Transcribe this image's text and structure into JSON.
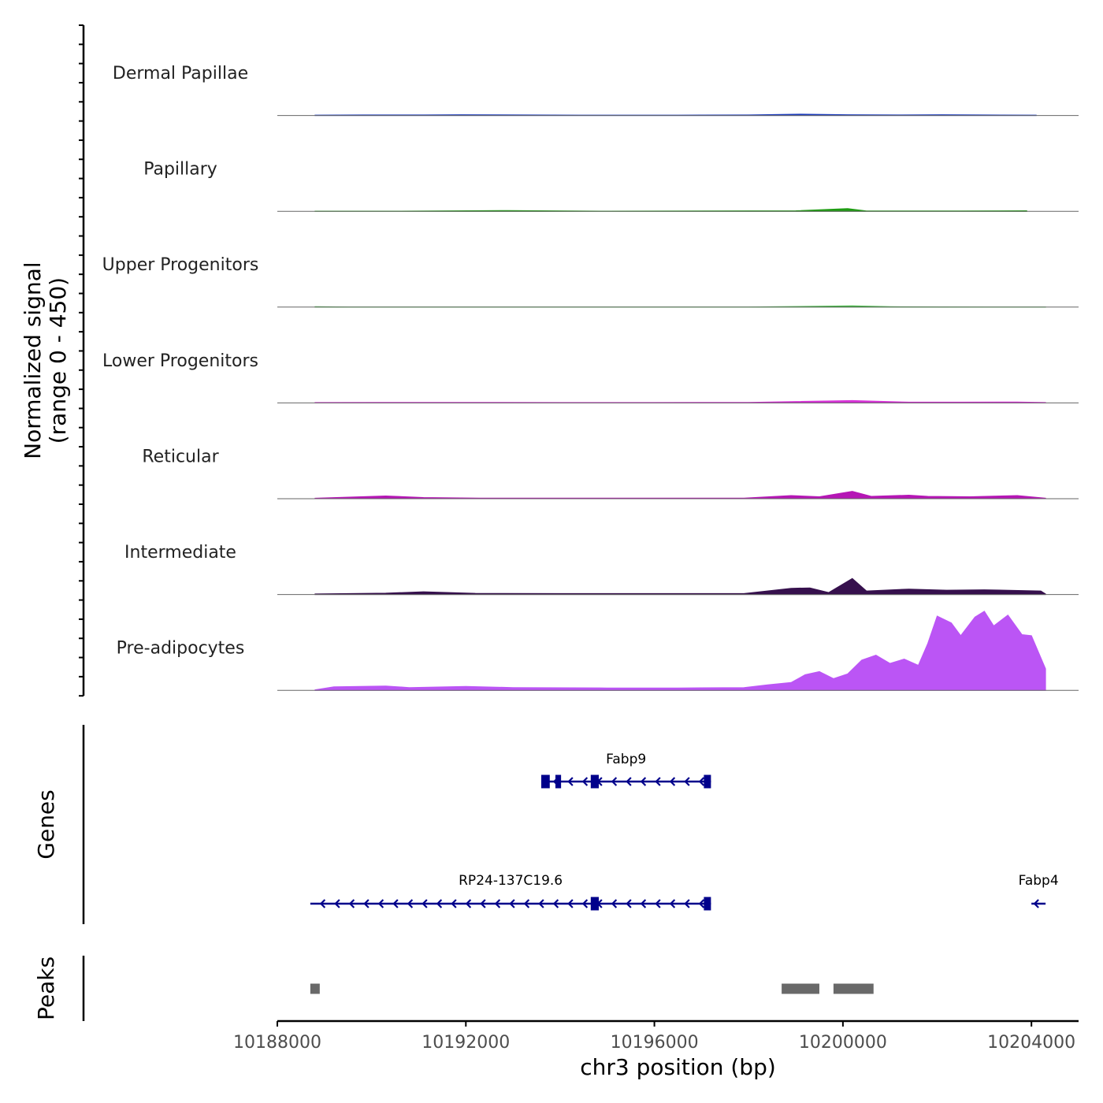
{
  "chart_data": {
    "type": "area",
    "title": "",
    "region": {
      "chromosome": "chr3",
      "start": 10188000,
      "end": 10205000
    },
    "xlabel": "chr3 position (bp)",
    "x_ticks": [
      10188000,
      10192000,
      10196000,
      10200000,
      10204000
    ],
    "coverage_ylabel": "Normalized signal\n(range 0 - 450)",
    "ylim": [
      0,
      450
    ],
    "series": [
      {
        "name": "Dermal Papillae",
        "color": "#1f3fbf",
        "x": [
          10188800,
          10189800,
          10191100,
          10191900,
          10194400,
          10196500,
          10198000,
          10199100,
          10200100,
          10201200,
          10202100,
          10203000,
          10204100
        ],
        "values": [
          2,
          3,
          3,
          4,
          2,
          2,
          3,
          7,
          4,
          3,
          4,
          3,
          2
        ]
      },
      {
        "name": "Papillary",
        "color": "#1e9c12",
        "x": [
          10188800,
          10190500,
          10192900,
          10195000,
          10197000,
          10199000,
          10200100,
          10200500,
          10201600,
          10202500,
          10203900
        ],
        "values": [
          1,
          1,
          4,
          1,
          2,
          3,
          14,
          2,
          2,
          2,
          3
        ]
      },
      {
        "name": "Upper Progenitors",
        "color": "#3cb83c",
        "x": [
          10188800,
          10189500,
          10192000,
          10195000,
          10198000,
          10200200,
          10201000,
          10203000,
          10204300
        ],
        "values": [
          2,
          1,
          1,
          1,
          1,
          6,
          2,
          1,
          1
        ]
      },
      {
        "name": "Lower Progenitors",
        "color": "#d633d6",
        "x": [
          10188800,
          10190200,
          10192000,
          10194000,
          10196000,
          10198000,
          10200200,
          10201400,
          10202500,
          10203700,
          10204300
        ],
        "values": [
          2,
          3,
          3,
          2,
          2,
          3,
          12,
          4,
          4,
          5,
          2
        ]
      },
      {
        "name": "Reticular",
        "color": "#b516b5",
        "x": [
          10188800,
          10190300,
          10191100,
          10192300,
          10194000,
          10196000,
          10197900,
          10198900,
          10199500,
          10200200,
          10200600,
          10201400,
          10201800,
          10202700,
          10203700,
          10204300
        ],
        "values": [
          3,
          14,
          6,
          3,
          3,
          3,
          3,
          16,
          10,
          38,
          12,
          18,
          12,
          10,
          16,
          3
        ]
      },
      {
        "name": "Intermediate",
        "color": "#36104d",
        "x": [
          10188800,
          10190300,
          10191100,
          10192200,
          10194000,
          10196000,
          10197900,
          10198900,
          10199300,
          10199700,
          10200200,
          10200500,
          10201400,
          10202200,
          10203000,
          10204200,
          10204300
        ],
        "values": [
          3,
          7,
          14,
          6,
          5,
          5,
          5,
          32,
          34,
          10,
          82,
          18,
          28,
          22,
          24,
          18,
          3
        ]
      },
      {
        "name": "Pre-adipocytes",
        "color": "#bb55f5",
        "x": [
          10188800,
          10189200,
          10190300,
          10190800,
          10192000,
          10193000,
          10195000,
          10196500,
          10197900,
          10198400,
          10198900,
          10199200,
          10199500,
          10199800,
          10200100,
          10200400,
          10200700,
          10201000,
          10201300,
          10201600,
          10201800,
          10202000,
          10202300,
          10202500,
          10202800,
          10203000,
          10203200,
          10203500,
          10203800,
          10204000,
          10204300
        ],
        "values": [
          3,
          18,
          22,
          14,
          20,
          14,
          12,
          12,
          14,
          28,
          40,
          80,
          96,
          60,
          84,
          155,
          180,
          138,
          160,
          128,
          240,
          380,
          345,
          280,
          375,
          405,
          330,
          385,
          285,
          280,
          110
        ]
      }
    ],
    "genes": [
      {
        "name": "Fabp9",
        "strand": "-",
        "start": 10193600,
        "end": 10197200,
        "exons": [
          [
            10193600,
            10193780
          ],
          [
            10193900,
            10194020
          ],
          [
            10194650,
            10194820
          ],
          [
            10197050,
            10197200
          ]
        ]
      },
      {
        "name": "RP24-137C19.6",
        "strand": "-",
        "start": 10188700,
        "end": 10197200,
        "exons": [
          [
            10194650,
            10194820
          ],
          [
            10197050,
            10197200
          ]
        ]
      },
      {
        "name": "Fabp4",
        "strand": "-",
        "start": 10204000,
        "end": 10204300,
        "exons": []
      }
    ],
    "genes_label": "Genes",
    "peaks_label": "Peaks",
    "peaks": [
      [
        10188700,
        10188900
      ],
      [
        10198700,
        10199500
      ],
      [
        10199800,
        10200650
      ]
    ],
    "colors": {
      "gene": "#00008b",
      "peak": "#696969",
      "baseline": "#666666",
      "axis": "#000000"
    }
  }
}
